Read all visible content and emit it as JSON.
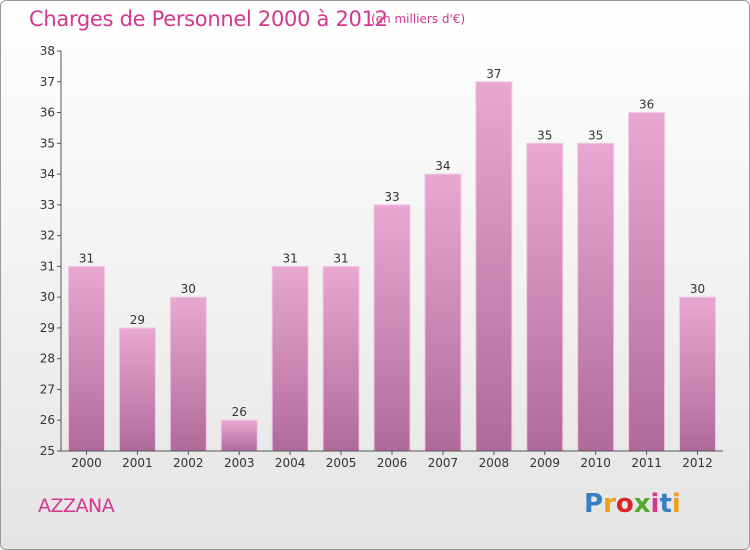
{
  "header": {
    "title": "Charges de Personnel 2000 à 2012",
    "subtitle": "(en milliers d'€)"
  },
  "footer": {
    "commune": "AZZANA",
    "logo": "Proxiti",
    "logo_colors": [
      "#3a7fc1",
      "#e8a21c",
      "#d8272b",
      "#55a832",
      "#d2388e",
      "#3a7fc1",
      "#e8a21c"
    ]
  },
  "colors": {
    "accent": "#d2388e",
    "bar_top": "#e8a8d2",
    "bar_bottom": "#b06a9a",
    "bar_edge": "#f0c8e2"
  },
  "chart_data": {
    "type": "bar",
    "categories": [
      "2000",
      "2001",
      "2002",
      "2003",
      "2004",
      "2005",
      "2006",
      "2007",
      "2008",
      "2009",
      "2010",
      "2011",
      "2012"
    ],
    "values": [
      31,
      29,
      30,
      26,
      31,
      31,
      33,
      34,
      37,
      35,
      35,
      36,
      30
    ],
    "data_labels": [
      "31",
      "29",
      "30",
      "26",
      "31",
      "31",
      "33",
      "34",
      "37",
      "35",
      "35",
      "36",
      "30"
    ],
    "y_ticks": [
      "25",
      "26",
      "27",
      "28",
      "29",
      "30",
      "31",
      "32",
      "33",
      "34",
      "35",
      "36",
      "37",
      "38"
    ],
    "ylim": [
      25,
      38
    ],
    "grid": false,
    "legend": "none"
  }
}
